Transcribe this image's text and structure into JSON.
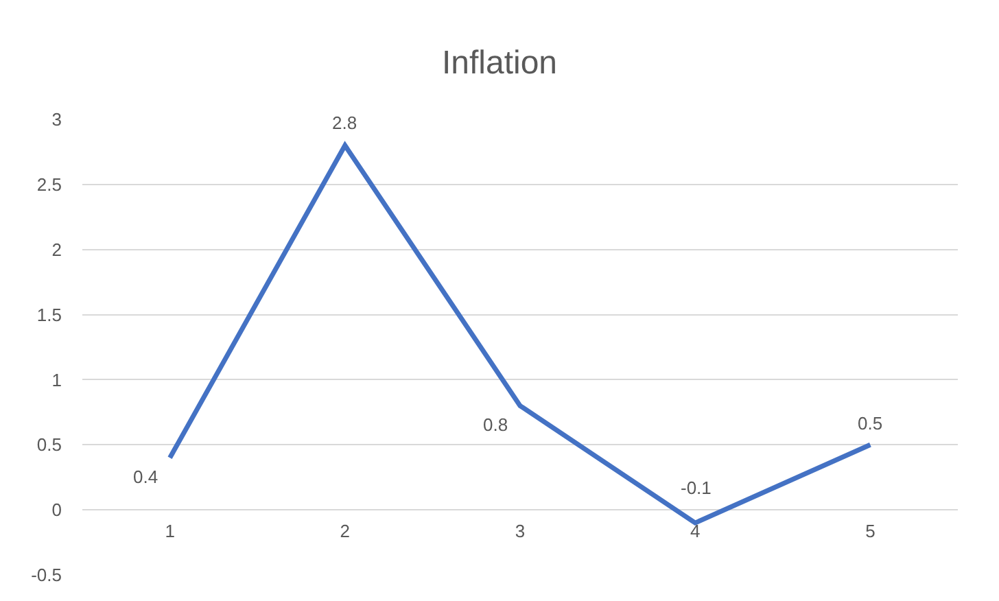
{
  "chart_data": {
    "type": "line",
    "title": "Inflation",
    "categories": [
      "1",
      "2",
      "3",
      "4",
      "5"
    ],
    "series": [
      {
        "color": "#4472c4",
        "values": [
          0.4,
          2.8,
          0.8,
          -0.1,
          0.5
        ]
      }
    ],
    "ylim": [
      -0.5,
      3
    ],
    "yticks": [
      -0.5,
      0,
      0.5,
      1,
      1.5,
      2,
      2.5,
      3
    ],
    "grid": "y",
    "data_labels": true,
    "marker": "none",
    "line_style": "solid"
  }
}
